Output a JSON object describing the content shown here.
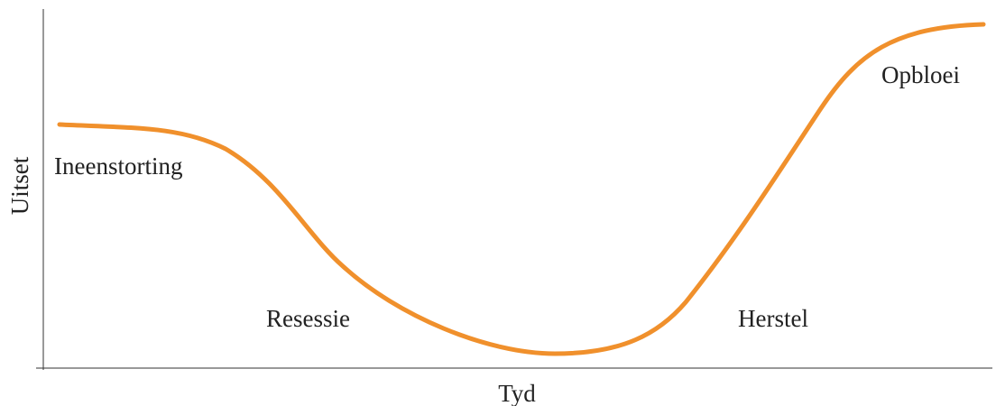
{
  "axes": {
    "x_label": "Tyd",
    "y_label": "Uitset"
  },
  "phases": [
    {
      "label": "Ineenstorting"
    },
    {
      "label": "Resessie"
    },
    {
      "label": "Herstel"
    },
    {
      "label": "Opbloei"
    }
  ]
}
